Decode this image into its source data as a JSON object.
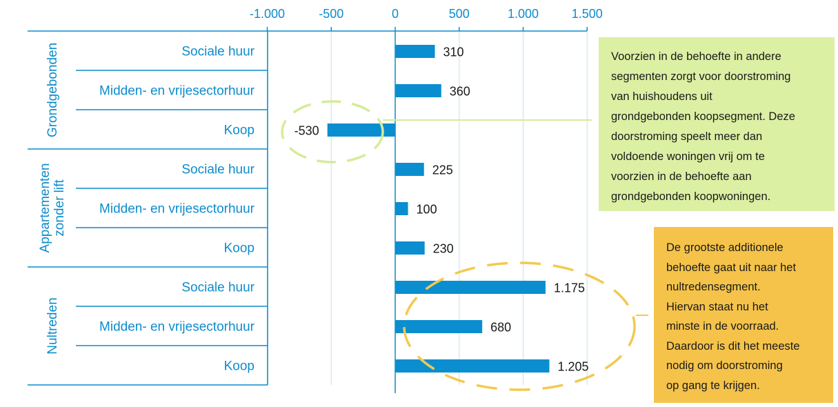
{
  "chart_data": {
    "type": "bar",
    "orientation": "horizontal",
    "xlim": [
      -1000,
      1500
    ],
    "x_ticks": [
      {
        "value": -1000,
        "label": "-1.000"
      },
      {
        "value": -500,
        "label": "-500"
      },
      {
        "value": 0,
        "label": "0"
      },
      {
        "value": 500,
        "label": "500"
      },
      {
        "value": 1000,
        "label": "1.000"
      },
      {
        "value": 1500,
        "label": "1.500"
      }
    ],
    "grid": true,
    "groups": [
      {
        "name": "Grondgebonden",
        "lines": [
          "Grondgebonden"
        ],
        "categories": [
          {
            "label": "Sociale huur",
            "value": 310,
            "value_label": "310"
          },
          {
            "label": "Midden- en vrijesectorhuur",
            "value": 360,
            "value_label": "360"
          },
          {
            "label": "Koop",
            "value": -530,
            "value_label": "-530"
          }
        ]
      },
      {
        "name": "Appartementen zonder lift",
        "lines": [
          "Appartementen",
          "zonder lift"
        ],
        "categories": [
          {
            "label": "Sociale huur",
            "value": 225,
            "value_label": "225"
          },
          {
            "label": "Midden- en vrijesectorhuur",
            "value": 100,
            "value_label": "100"
          },
          {
            "label": "Koop",
            "value": 230,
            "value_label": "230"
          }
        ]
      },
      {
        "name": "Nultreden",
        "lines": [
          "Nultreden"
        ],
        "categories": [
          {
            "label": "Sociale huur",
            "value": 1175,
            "value_label": "1.175"
          },
          {
            "label": "Midden- en vrijesectorhuur",
            "value": 680,
            "value_label": "680"
          },
          {
            "label": "Koop",
            "value": 1205,
            "value_label": "1.205"
          }
        ]
      }
    ],
    "annotations": [
      {
        "text": "Voorzien in de behoefte in andere segmenten zorgt voor doorstroming van huishoudens uit grondgebonden koopsegment. Deze doorstroming speelt meer dan voldoende woningen vrij om te voorzien in de behoefte aan grondgebonden koopwoningen.",
        "lines": [
          "Voorzien in de behoefte in andere",
          "segmenten zorgt voor doorstroming",
          "van huishoudens uit",
          "grondgebonden koopsegment. Deze",
          "doorstroming speelt meer dan",
          "voldoende woningen vrij om te",
          "voorzien in de behoefte aan",
          "grondgebonden koopwoningen."
        ],
        "color": "#dcf0a4",
        "target": "Grondgebonden / Koop"
      },
      {
        "text": "De grootste additionele behoefte gaat uit naar het nultredensegment. Hiervan staat nu het minste in de voorraad. Daardoor is dit het meeste nodig om doorstroming op gang te krijgen.",
        "lines": [
          "De grootste additionele",
          "behoefte gaat uit naar het",
          "nultredensegment.",
          "Hiervan staat nu het",
          "minste in de voorraad.",
          "Daardoor is dit het meeste",
          "nodig om doorstroming",
          "op gang te krijgen."
        ],
        "color": "#f5c34a",
        "target": "Nultreden"
      }
    ],
    "colors": {
      "bar": "#0a8ed0",
      "text_accent": "#0c8ccc",
      "grid": "#cde4f2",
      "green_ellipse": "#d4ec9a",
      "yellow_ellipse": "#f3c94e"
    }
  }
}
